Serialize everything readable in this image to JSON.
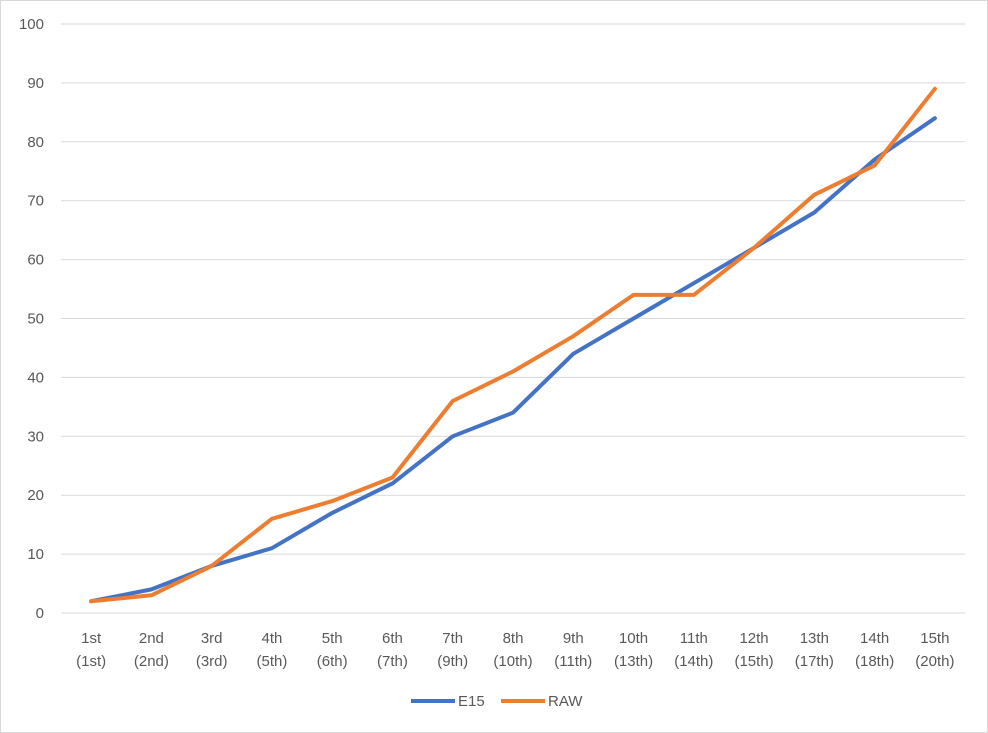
{
  "chart_data": {
    "type": "line",
    "title": "",
    "xlabel": "",
    "ylabel": "",
    "ylim": [
      0,
      100
    ],
    "yticks": [
      0,
      10,
      20,
      30,
      40,
      50,
      60,
      70,
      80,
      90,
      100
    ],
    "grid": "horizontal",
    "legend_position": "bottom",
    "categories": [
      [
        "1st",
        "(1st)"
      ],
      [
        "2nd",
        "(2nd)"
      ],
      [
        "3rd",
        "(3rd)"
      ],
      [
        "4th",
        "(5th)"
      ],
      [
        "5th",
        "(6th)"
      ],
      [
        "6th",
        "(7th)"
      ],
      [
        "7th",
        "(9th)"
      ],
      [
        "8th",
        "(10th)"
      ],
      [
        "9th",
        "(11th)"
      ],
      [
        "10th",
        "(13th)"
      ],
      [
        "11th",
        "(14th)"
      ],
      [
        "12th",
        "(15th)"
      ],
      [
        "13th",
        "(17th)"
      ],
      [
        "14th",
        "(18th)"
      ],
      [
        "15th",
        "(20th)"
      ]
    ],
    "series": [
      {
        "name": "E15",
        "color": "#4472C4",
        "values": [
          2,
          4,
          8,
          11,
          17,
          22,
          30,
          34,
          44,
          50,
          56,
          62,
          68,
          77,
          84
        ]
      },
      {
        "name": "RAW",
        "color": "#ED7D31",
        "values": [
          2,
          3,
          8,
          16,
          19,
          23,
          36,
          41,
          47,
          54,
          54,
          62,
          71,
          76,
          89
        ]
      }
    ]
  }
}
